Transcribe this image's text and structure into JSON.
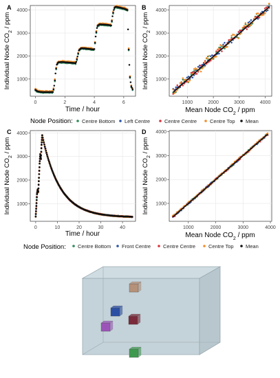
{
  "chart_data": [
    {
      "id": "A",
      "type": "scatter",
      "panel_label": "A",
      "xlabel": "Time / hour",
      "ylabel_main": "Individual Node CO",
      "ylabel_sub": "2",
      "ylabel_tail": " / ppm",
      "xlim": [
        -0.35,
        6.8
      ],
      "ylim": [
        250,
        4200
      ],
      "xticks": [
        0,
        2,
        4,
        6
      ],
      "yticks": [
        1000,
        2000,
        3000,
        4000
      ],
      "series": [
        {
          "name": "Centre Bottom",
          "color": "#2e8b57",
          "bias": -35,
          "jitter": 12
        },
        {
          "name": "Left Centre",
          "color": "#2b55a8",
          "bias": 0,
          "jitter": 10
        },
        {
          "name": "Centre Centre",
          "color": "#d6343c",
          "bias": 12,
          "jitter": 12
        },
        {
          "name": "Centre Top",
          "color": "#f28e2b",
          "bias": 45,
          "jitter": 15
        },
        {
          "name": "Mean",
          "color": "#111111",
          "bias": 0,
          "jitter": 0
        }
      ],
      "trace_points": [
        [
          0,
          530
        ],
        [
          0.05,
          500
        ],
        [
          0.15,
          460
        ],
        [
          0.3,
          440
        ],
        [
          0.5,
          430
        ],
        [
          0.8,
          430
        ],
        [
          1.2,
          432
        ],
        [
          1.3,
          800
        ],
        [
          1.38,
          1350
        ],
        [
          1.45,
          1620
        ],
        [
          1.55,
          1730
        ],
        [
          1.8,
          1740
        ],
        [
          2.2,
          1720
        ],
        [
          2.6,
          1700
        ],
        [
          2.75,
          1690
        ],
        [
          2.85,
          1950
        ],
        [
          2.95,
          2250
        ],
        [
          3.1,
          2340
        ],
        [
          3.4,
          2330
        ],
        [
          3.8,
          2300
        ],
        [
          4.0,
          2280
        ],
        [
          4.1,
          2900
        ],
        [
          4.2,
          3300
        ],
        [
          4.35,
          3380
        ],
        [
          4.7,
          3370
        ],
        [
          5.0,
          3350
        ],
        [
          5.15,
          3330
        ],
        [
          5.25,
          3800
        ],
        [
          5.35,
          4080
        ],
        [
          5.45,
          4150
        ],
        [
          5.8,
          4100
        ],
        [
          6.1,
          4050
        ],
        [
          6.25,
          4000
        ],
        [
          6.3,
          3000
        ],
        [
          6.35,
          2000
        ],
        [
          6.42,
          1100
        ],
        [
          6.5,
          700
        ],
        [
          6.6,
          550
        ]
      ],
      "dense": true
    },
    {
      "id": "B",
      "type": "scatter",
      "panel_label": "B",
      "xlabel_main": "Mean Node CO",
      "xlabel_sub": "2",
      "xlabel_tail": " / ppm",
      "ylabel_main": "Individual Node CO",
      "ylabel_sub": "2",
      "ylabel_tail": " / ppm",
      "xlim": [
        300,
        4250
      ],
      "ylim": [
        250,
        4200
      ],
      "xticks": [
        1000,
        2000,
        3000,
        4000
      ],
      "yticks": [
        1000,
        2000,
        3000,
        4000
      ],
      "fit_line": [
        [
          450,
          420
        ],
        [
          4150,
          4140
        ]
      ]
    },
    {
      "id": "C",
      "type": "scatter",
      "panel_label": "C",
      "xlabel": "Time / hour",
      "ylabel_main": "Individual Node CO",
      "ylabel_sub": "2",
      "ylabel_tail": " / ppm",
      "xlim": [
        -2.5,
        46
      ],
      "ylim": [
        250,
        4100
      ],
      "xticks": [
        0,
        10,
        20,
        30,
        40
      ],
      "yticks": [
        1000,
        2000,
        3000,
        4000
      ],
      "series": [
        {
          "name": "Centre Bottom",
          "color": "#2e8b57",
          "bias": 0,
          "jitter": 18
        },
        {
          "name": "Front Centre",
          "color": "#2b55a8",
          "bias": 0,
          "jitter": 18
        },
        {
          "name": "Centre Centre",
          "color": "#d6343c",
          "bias": 0,
          "jitter": 18
        },
        {
          "name": "Centre Top",
          "color": "#f28e2b",
          "bias": 0,
          "jitter": 18
        },
        {
          "name": "Mean",
          "color": "#111111",
          "bias": 0,
          "jitter": 0
        }
      ],
      "rise_points": [
        [
          0,
          450
        ],
        [
          0.3,
          900
        ],
        [
          0.6,
          1400
        ],
        [
          0.9,
          1600
        ],
        [
          1.2,
          1500
        ],
        [
          1.5,
          2100
        ],
        [
          1.8,
          2700
        ],
        [
          2.1,
          3100
        ],
        [
          2.4,
          2900
        ],
        [
          2.7,
          3500
        ],
        [
          3.0,
          3900
        ]
      ],
      "decay": {
        "start": 3.0,
        "end": 44.5,
        "base": 420,
        "amp": 3480,
        "tau": 8.2
      }
    },
    {
      "id": "D",
      "type": "scatter",
      "panel_label": "D",
      "xlabel_main": "Mean Node CO",
      "xlabel_sub": "2",
      "xlabel_tail": " / ppm",
      "ylabel_main": "Individual Node CO",
      "ylabel_sub": "2",
      "ylabel_tail": " / ppm",
      "xlim": [
        300,
        4050
      ],
      "ylim": [
        250,
        4050
      ],
      "xticks": [
        1000,
        2000,
        3000,
        4000
      ],
      "yticks": [
        1000,
        2000,
        3000,
        4000
      ],
      "fit_line": [
        [
          420,
          420
        ],
        [
          3900,
          3900
        ]
      ]
    }
  ],
  "legend1": {
    "title": "Node Position:",
    "items": [
      {
        "label": "Centre Bottom",
        "color": "#2e8b57"
      },
      {
        "label": "Left Centre",
        "color": "#2b55a8"
      },
      {
        "label": "Centre Centre",
        "color": "#d6343c"
      },
      {
        "label": "Centre Top",
        "color": "#f28e2b"
      },
      {
        "label": "Mean",
        "color": "#111111"
      }
    ]
  },
  "legend2": {
    "title": "Node Position:",
    "items": [
      {
        "label": "Centre Bottom",
        "color": "#2e8b57"
      },
      {
        "label": "Front Centre",
        "color": "#2b55a8"
      },
      {
        "label": "Centre Centre",
        "color": "#d6343c"
      },
      {
        "label": "Centre Top",
        "color": "#f28e2b"
      },
      {
        "label": "Mean",
        "color": "#111111"
      }
    ]
  },
  "cube_diagram": {
    "box_color": "#b8c8cf",
    "nodes": [
      {
        "name": "centre-top-node",
        "color": "#b5917a"
      },
      {
        "name": "front-centre-node",
        "color": "#2b4fa3"
      },
      {
        "name": "centre-centre-node",
        "color": "#7a2a3a"
      },
      {
        "name": "left-centre-node",
        "color": "#9b55b8"
      },
      {
        "name": "centre-bottom-node",
        "color": "#3f9a4f"
      }
    ]
  }
}
